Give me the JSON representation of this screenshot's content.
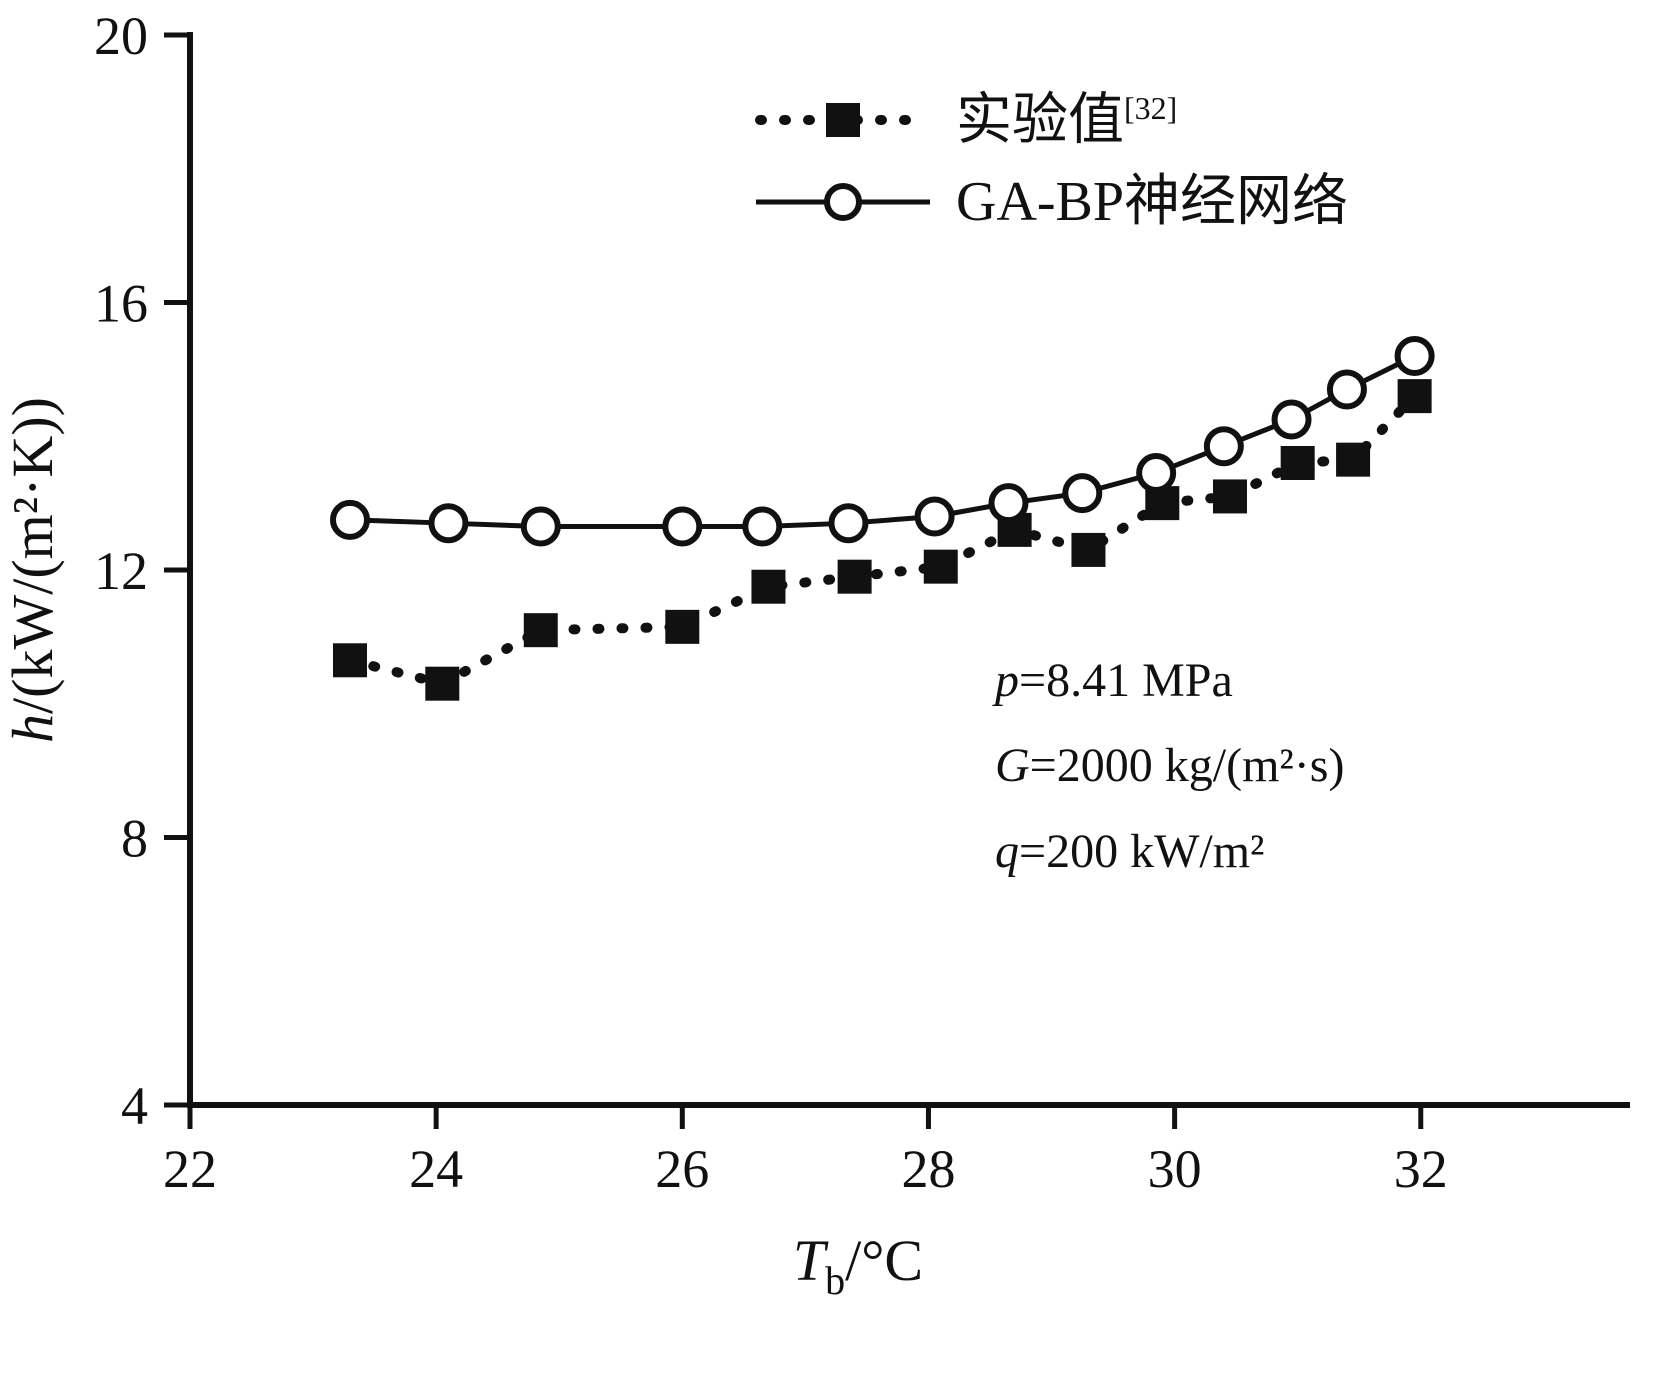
{
  "chart_data": {
    "type": "line",
    "title": "",
    "xlabel": {
      "var": "T",
      "sub": "b",
      "rest": "/°C"
    },
    "ylabel": {
      "var": "h",
      "rest": "/(kW/(m²·K))"
    },
    "xlim": [
      22,
      33.7
    ],
    "ylim": [
      4,
      20
    ],
    "xticks": [
      22,
      24,
      26,
      28,
      30,
      32
    ],
    "yticks": [
      4,
      8,
      12,
      16,
      20
    ],
    "grid": false,
    "legend_position": "top-center",
    "series": [
      {
        "name": "实验值[32]",
        "marker": "filled-square",
        "line": "dotted",
        "color": "#111111",
        "x": [
          23.3,
          24.05,
          24.85,
          26.0,
          26.7,
          27.4,
          28.1,
          28.7,
          29.3,
          29.9,
          30.45,
          31.0,
          31.45,
          31.95
        ],
        "y": [
          10.65,
          10.3,
          11.1,
          11.15,
          11.75,
          11.9,
          12.05,
          12.6,
          12.3,
          13.0,
          13.1,
          13.6,
          13.65,
          14.6
        ]
      },
      {
        "name": "GA-BP神经网络",
        "marker": "open-circle",
        "line": "solid",
        "color": "#111111",
        "x": [
          23.3,
          24.1,
          24.85,
          26.0,
          26.65,
          27.35,
          28.05,
          28.65,
          29.25,
          29.85,
          30.4,
          30.95,
          31.4,
          31.95
        ],
        "y": [
          12.75,
          12.7,
          12.65,
          12.65,
          12.65,
          12.7,
          12.8,
          13.0,
          13.15,
          13.45,
          13.85,
          14.25,
          14.7,
          15.2
        ]
      }
    ],
    "legend": {
      "item1": {
        "main": "实验值",
        "sup": "[32]"
      },
      "item2": {
        "label": "GA-BP神经网络"
      }
    },
    "annotations": [
      {
        "var": "p",
        "rest": "=8.41 MPa"
      },
      {
        "var": "G",
        "rest": "=2000 kg/(m²·s)"
      },
      {
        "var": "q",
        "rest": "=200 kW/m²"
      }
    ],
    "colors": {
      "ink": "#111111",
      "background": "#ffffff"
    }
  }
}
